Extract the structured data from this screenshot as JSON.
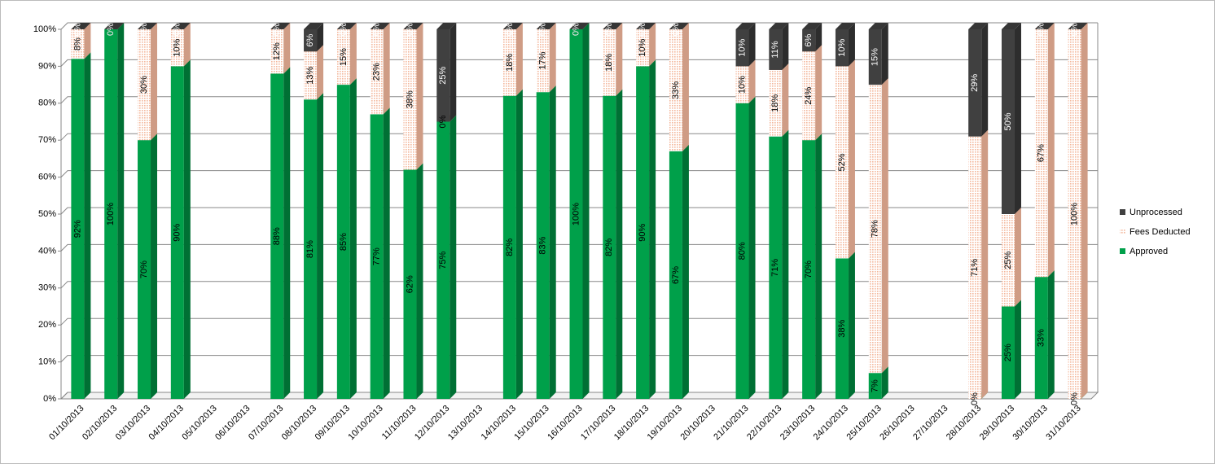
{
  "chart_data": {
    "type": "stacked-bar-3d",
    "categories": [
      "01/10/2013",
      "02/10/2013",
      "03/10/2013",
      "04/10/2013",
      "05/10/2013",
      "06/10/2013",
      "07/10/2013",
      "08/10/2013",
      "09/10/2013",
      "10/10/2013",
      "11/10/2013",
      "12/10/2013",
      "13/10/2013",
      "14/10/2013",
      "15/10/2013",
      "16/10/2013",
      "17/10/2013",
      "18/10/2013",
      "19/10/2013",
      "20/10/2013",
      "21/10/2013",
      "22/10/2013",
      "23/10/2013",
      "24/10/2013",
      "25/10/2013",
      "26/10/2013",
      "27/10/2013",
      "28/10/2013",
      "29/10/2013",
      "30/10/2013",
      "31/10/2013"
    ],
    "series": [
      {
        "name": "Approved",
        "color": "#00a04a",
        "values": [
          92,
          100,
          70,
          90,
          null,
          null,
          88,
          81,
          85,
          77,
          62,
          75,
          null,
          82,
          83,
          100,
          82,
          90,
          67,
          null,
          80,
          71,
          70,
          38,
          7,
          null,
          null,
          0,
          25,
          33,
          0
        ],
        "value_labels": [
          "92%",
          "100%",
          "70%",
          "90%",
          null,
          null,
          "88%",
          "81%",
          "85%",
          "77%",
          "62%",
          "75%",
          null,
          "82%",
          "83%",
          "100%",
          "82%",
          "90%",
          "67%",
          null,
          "80%",
          "71%",
          "70%",
          "38%",
          "7%",
          null,
          null,
          "0%",
          "25%",
          "33%",
          "0%"
        ]
      },
      {
        "name": "Fees Deducted",
        "color": "#f4b89c",
        "values": [
          8,
          0,
          30,
          10,
          null,
          null,
          12,
          13,
          15,
          23,
          38,
          0,
          null,
          18,
          17,
          0,
          18,
          10,
          33,
          null,
          10,
          18,
          24,
          52,
          78,
          null,
          null,
          71,
          25,
          67,
          100
        ],
        "value_labels": [
          "8%",
          "0%",
          "30%",
          "10%",
          null,
          null,
          "12%",
          "13%",
          "15%",
          "23%",
          "38%",
          "0%",
          null,
          "18%",
          "17%",
          "0%",
          "18%",
          "10%",
          "33%",
          null,
          "10%",
          "18%",
          "24%",
          "52%",
          "78%",
          null,
          null,
          "71%",
          "25%",
          "67%",
          "100%"
        ]
      },
      {
        "name": "Unprocessed",
        "color": "#404040",
        "values": [
          0,
          0,
          0,
          0,
          null,
          null,
          0,
          6,
          0,
          0,
          0,
          25,
          null,
          0,
          0,
          0,
          0,
          0,
          0,
          null,
          10,
          11,
          6,
          10,
          15,
          null,
          null,
          29,
          50,
          0,
          0
        ],
        "value_labels": [
          "0%",
          "0%",
          "0%",
          "0%",
          null,
          null,
          "0%",
          "6%",
          "0%",
          "0%",
          "0%",
          "25%",
          null,
          "0%",
          "0%",
          "0%",
          "0%",
          "0%",
          "0%",
          null,
          "10%",
          "11%",
          "6%",
          "10%",
          "15%",
          null,
          null,
          "29%",
          "50%",
          "0%",
          "0%"
        ]
      }
    ],
    "ylim": [
      0,
      100
    ],
    "yticks": [
      {
        "value": 0,
        "label": "0%"
      },
      {
        "value": 10,
        "label": "10%"
      },
      {
        "value": 20,
        "label": "20%"
      },
      {
        "value": 30,
        "label": "30%"
      },
      {
        "value": 40,
        "label": "40%"
      },
      {
        "value": 50,
        "label": "50%"
      },
      {
        "value": 60,
        "label": "60%"
      },
      {
        "value": 70,
        "label": "70%"
      },
      {
        "value": 80,
        "label": "80%"
      },
      {
        "value": 90,
        "label": "90%"
      },
      {
        "value": 100,
        "label": "100%"
      }
    ],
    "grid": true,
    "legend": "right"
  }
}
